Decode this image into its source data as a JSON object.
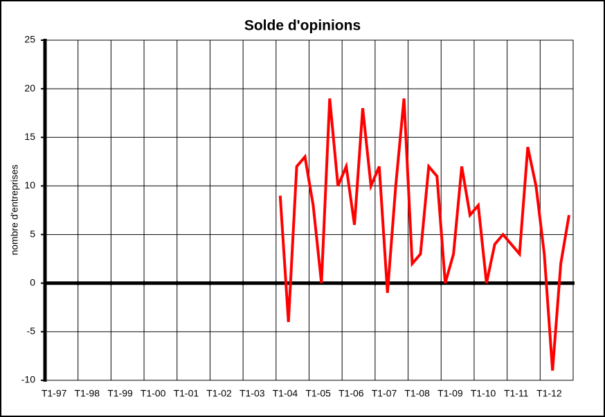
{
  "chart_data": {
    "type": "line",
    "title": "Solde d'opinions",
    "y_label": "nombre d'entreprises",
    "categories": [
      "T1-97",
      null,
      null,
      null,
      "T1-98",
      null,
      null,
      null,
      "T1-99",
      null,
      null,
      null,
      "T1-00",
      null,
      null,
      null,
      "T1-01",
      null,
      null,
      null,
      "T1-02",
      null,
      null,
      null,
      "T1-03",
      null,
      null,
      null,
      "T1-04",
      null,
      null,
      null,
      "T1-05",
      null,
      null,
      null,
      "T1-06",
      null,
      null,
      null,
      "T1-07",
      null,
      null,
      null,
      "T1-08",
      null,
      null,
      null,
      "T1-09",
      null,
      null,
      null,
      "T1-10",
      null,
      null,
      null,
      "T1-11",
      null,
      null,
      null,
      "T1-12",
      null,
      null,
      null
    ],
    "series": [
      {
        "color": "#ff0000",
        "values": [
          null,
          null,
          null,
          null,
          null,
          null,
          null,
          null,
          null,
          null,
          null,
          null,
          null,
          null,
          null,
          null,
          null,
          null,
          null,
          null,
          null,
          null,
          null,
          null,
          null,
          null,
          null,
          null,
          9,
          -4,
          12,
          13,
          8,
          0,
          19,
          10,
          12,
          6,
          18,
          10,
          12,
          -1,
          10,
          19,
          2,
          3,
          12,
          11,
          0,
          3,
          12,
          7,
          8,
          0,
          4,
          5,
          4,
          3,
          14,
          10,
          3,
          -9,
          2,
          7
        ]
      }
    ],
    "ylim": [
      -10,
      25
    ],
    "yticks": [
      -10,
      -5,
      0,
      5,
      10,
      15,
      20,
      25
    ],
    "grid": true
  }
}
